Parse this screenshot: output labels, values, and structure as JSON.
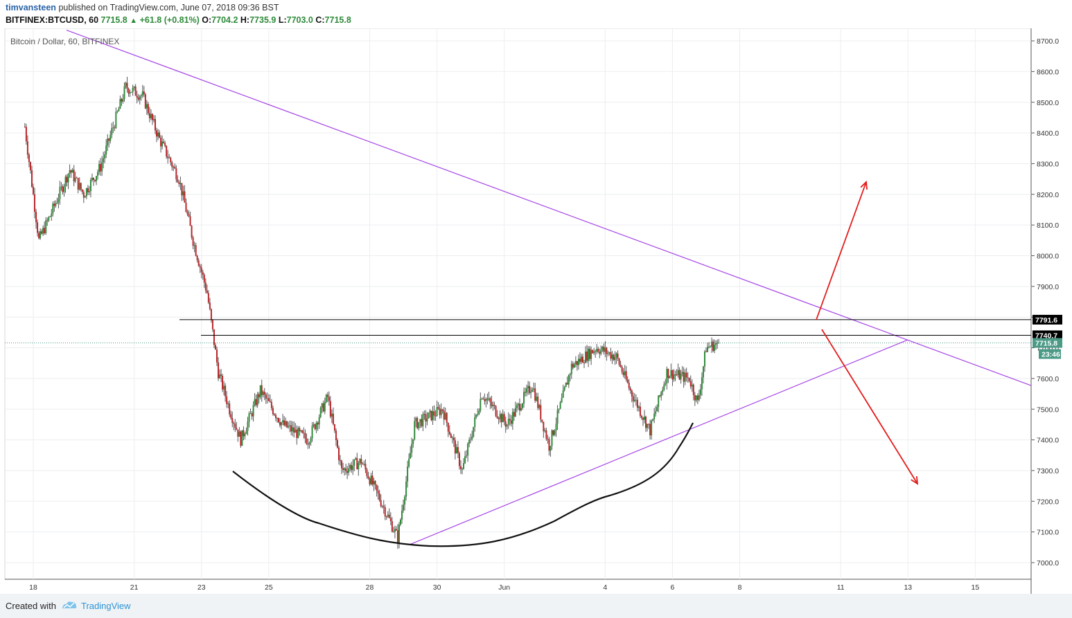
{
  "header": {
    "author": "timvansteen",
    "published_text": "published on TradingView.com, June 07, 2018 09:36 BST",
    "symbol_tf": "BITFINEX:BTCUSD, 60",
    "last": "7715.8",
    "change": "+61.8 (+0.81%)",
    "o_label": "O:",
    "o_value": "7704.2",
    "h_label": "H:",
    "h_value": "7735.9",
    "l_label": "L:",
    "l_value": "7703.0",
    "c_label": "C:",
    "c_value": "7715.8"
  },
  "footer": {
    "created_with": "Created with",
    "brand": "TradingView"
  },
  "chart_data": {
    "type": "candlestick",
    "title": "Bitcoin / Dollar, 60, BITFINEX",
    "x_tick_labels": [
      "18",
      "21",
      "23",
      "25",
      "28",
      "30",
      "Jun",
      "4",
      "6",
      "8",
      "11",
      "13",
      "15"
    ],
    "y_tick_labels": [
      "8700.0",
      "8600.0",
      "8500.0",
      "8400.0",
      "8300.0",
      "8200.0",
      "8100.0",
      "8000.0",
      "7900.0",
      "7800.0",
      "7700.0",
      "7600.0",
      "7500.0",
      "7400.0",
      "7300.0",
      "7200.0",
      "7100.0",
      "7000.0"
    ],
    "ylim": [
      6970,
      8760
    ],
    "price_path": [
      {
        "date": "May 17 18:00",
        "price": 8420
      },
      {
        "date": "May 18 04:00",
        "price": 8050
      },
      {
        "date": "May 18 12:00",
        "price": 8130
      },
      {
        "date": "May 19 02:00",
        "price": 8280
      },
      {
        "date": "May 19 12:00",
        "price": 8200
      },
      {
        "date": "May 20 00:00",
        "price": 8290
      },
      {
        "date": "May 20 18:00",
        "price": 8550
      },
      {
        "date": "May 21 06:00",
        "price": 8520
      },
      {
        "date": "May 21 18:00",
        "price": 8380
      },
      {
        "date": "May 22 08:00",
        "price": 8250
      },
      {
        "date": "May 22 18:00",
        "price": 8050
      },
      {
        "date": "May 23 04:00",
        "price": 7880
      },
      {
        "date": "May 23 12:00",
        "price": 7620
      },
      {
        "date": "May 23 20:00",
        "price": 7500
      },
      {
        "date": "May 24 04:00",
        "price": 7400
      },
      {
        "date": "May 24 18:00",
        "price": 7560
      },
      {
        "date": "May 25 10:00",
        "price": 7450
      },
      {
        "date": "May 26 04:00",
        "price": 7400
      },
      {
        "date": "May 26 18:00",
        "price": 7540
      },
      {
        "date": "May 27 04:00",
        "price": 7300
      },
      {
        "date": "May 27 18:00",
        "price": 7330
      },
      {
        "date": "May 28 08:00",
        "price": 7200
      },
      {
        "date": "May 28 20:00",
        "price": 7080
      },
      {
        "date": "May 29 08:00",
        "price": 7450
      },
      {
        "date": "May 30 04:00",
        "price": 7500
      },
      {
        "date": "May 30 18:00",
        "price": 7300
      },
      {
        "date": "May 31 08:00",
        "price": 7550
      },
      {
        "date": "Jun 1 02:00",
        "price": 7450
      },
      {
        "date": "Jun 1 20:00",
        "price": 7580
      },
      {
        "date": "Jun 2 08:00",
        "price": 7380
      },
      {
        "date": "Jun 3 00:00",
        "price": 7640
      },
      {
        "date": "Jun 3 18:00",
        "price": 7700
      },
      {
        "date": "Jun 4 08:00",
        "price": 7670
      },
      {
        "date": "Jun 4 18:00",
        "price": 7560
      },
      {
        "date": "Jun 5 08:00",
        "price": 7430
      },
      {
        "date": "Jun 5 20:00",
        "price": 7620
      },
      {
        "date": "Jun 6 12:00",
        "price": 7600
      },
      {
        "date": "Jun 6 18:00",
        "price": 7520
      },
      {
        "date": "Jun 7 00:00",
        "price": 7700
      },
      {
        "date": "Jun 7 09:00",
        "price": 7716
      }
    ],
    "horizontal_levels": [
      {
        "price": 7791.6,
        "label": "7791.6"
      },
      {
        "price": 7740.7,
        "label": "7740.7"
      }
    ],
    "last_price": {
      "price": 7715.8,
      "label": "7715.8",
      "countdown": "23:46"
    },
    "colors": {
      "up": "#2f8a3a",
      "down": "#b8262a",
      "trend": "#a543e6",
      "arrow": "#e31b1b",
      "level": "#000000",
      "last": "#4a9a86"
    }
  }
}
